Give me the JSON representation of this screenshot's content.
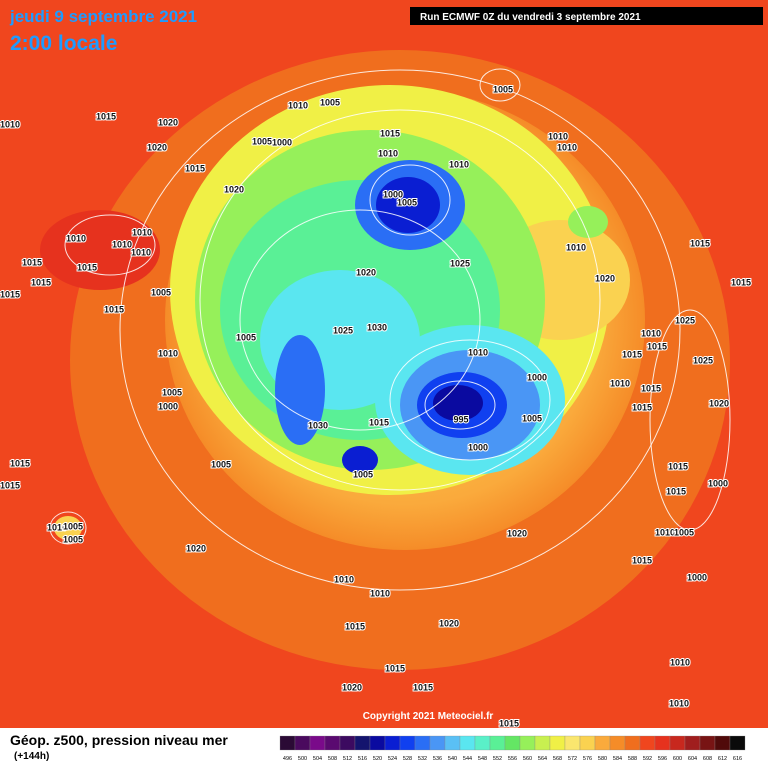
{
  "header": {
    "date": "jeudi 9 septembre 2021",
    "time": "2:00 locale",
    "run": "Run ECMWF 0Z du vendredi 3 septembre 2021"
  },
  "map": {
    "pressure_labels": [
      "1010",
      "1015",
      "1020",
      "1020",
      "1010",
      "1005",
      "1005",
      "1000",
      "1015",
      "1015",
      "1010",
      "1010",
      "1010",
      "1010",
      "1005",
      "1020",
      "1000",
      "1005",
      "1010",
      "1010",
      "1010",
      "1010",
      "1015",
      "1015",
      "1015",
      "1015",
      "1015",
      "1005",
      "1020",
      "1025",
      "1010",
      "1020",
      "1015",
      "1015",
      "1025",
      "1030",
      "1005",
      "1010",
      "1010",
      "1000",
      "1025",
      "1010",
      "1015",
      "1015",
      "1025",
      "1010",
      "1015",
      "1020",
      "1015",
      "1005",
      "1000",
      "1030",
      "1015",
      "995",
      "1005",
      "1000",
      "1005",
      "1005",
      "1015",
      "1015",
      "1015",
      "1015",
      "1000",
      "1010",
      "1005",
      "1005",
      "1020",
      "1020",
      "1010",
      "1005",
      "1015",
      "1000",
      "1010",
      "1010",
      "1015",
      "1020",
      "1015",
      "1020",
      "1015",
      "1010",
      "1010",
      "1015"
    ],
    "copyright": "Copyright 2021 Meteociel.fr"
  },
  "footer": {
    "title": "Géop. z500, pression niveau mer",
    "lead": "(+144h)"
  },
  "legend": {
    "ticks": [
      496,
      500,
      504,
      508,
      512,
      516,
      520,
      524,
      528,
      532,
      536,
      540,
      544,
      548,
      552,
      556,
      560,
      564,
      568,
      572,
      576,
      580,
      584,
      588,
      592,
      596,
      600,
      604,
      608,
      612,
      616
    ],
    "colors": [
      "#2b0a35",
      "#4a0a5e",
      "#7a0a8a",
      "#5a0a70",
      "#3c0a60",
      "#14146e",
      "#0a0aa0",
      "#0a1ed2",
      "#1040f0",
      "#2a6ef5",
      "#4a96f5",
      "#5ac0f5",
      "#5ae6f0",
      "#5af0c8",
      "#5af096",
      "#64e664",
      "#96f05a",
      "#c8f050",
      "#f0f046",
      "#fae66e",
      "#fad250",
      "#faaa3c",
      "#f58c28",
      "#f06e1e",
      "#f0461e",
      "#e6321e",
      "#c8281e",
      "#a01e1e",
      "#781414",
      "#500a0a",
      "#0a0a0a"
    ]
  }
}
